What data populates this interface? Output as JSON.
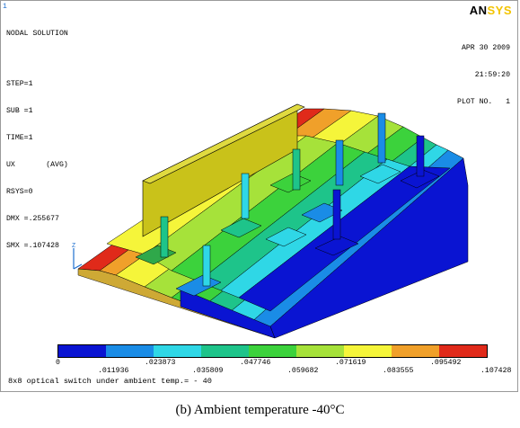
{
  "window": {
    "frame_number": "1",
    "logo_main": "AN",
    "logo_accent": "SYS"
  },
  "info_block": {
    "title": "NODAL SOLUTION",
    "step": "STEP=1",
    "sub": "SUB =1",
    "time": "TIME=1",
    "component": "UX       (AVG)",
    "rsys": "RSYS=0",
    "dmx": "DMX =.255677",
    "smx": "SMX =.107428"
  },
  "stamp": {
    "date": "APR 30 2009",
    "time": "21:59:20",
    "plot_no": "PLOT NO.   1"
  },
  "legend": {
    "colors": [
      "#0a14d2",
      "#1a8ce6",
      "#2fd7e6",
      "#1ec48a",
      "#3cd23c",
      "#a6e23a",
      "#f5f53a",
      "#f0a02a",
      "#e02a1a"
    ],
    "labels_bottom": [
      "0",
      ".023873",
      ".047746",
      ".071619",
      ".095492"
    ],
    "labels_top": [
      ".011936",
      ".035809",
      ".059682",
      ".083555",
      ".107428"
    ]
  },
  "plot_caption": "8x8 optical switch under ambient temp.= - 40",
  "figure_caption": "(b) Ambient temperature -40°C",
  "colors": {
    "frame_border": "#9a9a9a",
    "model_wall": "#c9c21a",
    "axis_blue": "#1e6fcf"
  }
}
